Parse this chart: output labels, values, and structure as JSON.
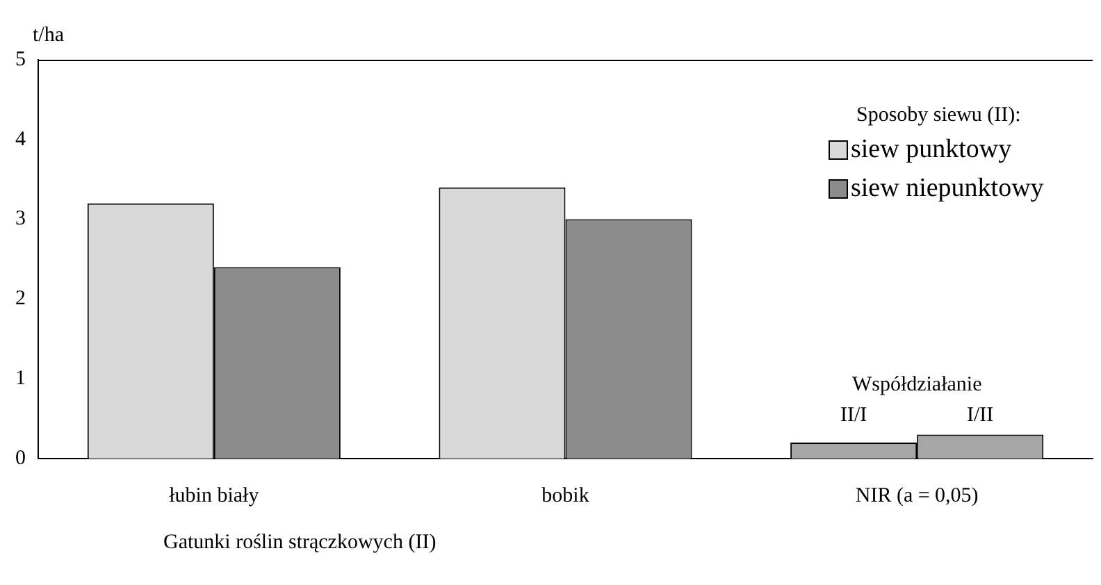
{
  "chart_data": {
    "type": "bar",
    "ylabel": "t/ha",
    "xlabel": "Gatunki roślin strączkowych (II)",
    "legend_title": "Sposoby siewu (II):",
    "categories": [
      "łubin biały",
      "bobik",
      "NIR (a = 0,05)"
    ],
    "series": [
      {
        "name": "siew punktowy",
        "color": "#d9d9d9",
        "colors": [
          "#d9d9d9",
          "#d9d9d9",
          "#a6a6a6"
        ],
        "values": [
          3.2,
          3.4,
          0.2
        ]
      },
      {
        "name": "siew niepunktowy",
        "color": "#8c8c8c",
        "colors": [
          "#8c8c8c",
          "#8c8c8c",
          "#a6a6a6"
        ],
        "values": [
          2.4,
          3.0,
          0.3
        ]
      }
    ],
    "annotations": [
      "Współdziałanie",
      "II/I",
      "I/II"
    ],
    "ylim": [
      0,
      5
    ],
    "yticks": [
      0,
      1,
      2,
      3,
      4,
      5
    ],
    "grid": false,
    "legend": "top right"
  }
}
